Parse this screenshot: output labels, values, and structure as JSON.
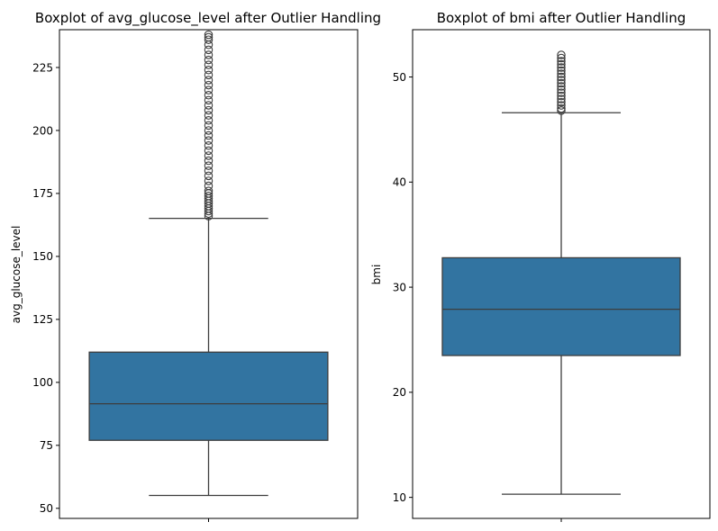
{
  "colors": {
    "box_fill": "#3274a1",
    "line": "#3d3d3d",
    "frame": "#000000",
    "background": "#ffffff"
  },
  "chart_data": [
    {
      "type": "boxplot",
      "title": "Boxplot of avg_glucose_level after Outlier Handling",
      "xlabel": "",
      "ylabel": "avg_glucose_level",
      "ylim": [
        46,
        240
      ],
      "yticks": [
        50,
        75,
        100,
        125,
        150,
        175,
        200,
        225
      ],
      "box": {
        "whisker_low": 55.1,
        "q1": 77.0,
        "median": 91.5,
        "q3": 112.0,
        "whisker_high": 165.1
      },
      "outliers": [
        166,
        167,
        168,
        169,
        170,
        171,
        172,
        173,
        174,
        175,
        176,
        178,
        180,
        182,
        184,
        186,
        188,
        190,
        192,
        194,
        196,
        198,
        200,
        202,
        204,
        206,
        208,
        210,
        212,
        214,
        216,
        218,
        220,
        222,
        224,
        226,
        228,
        230,
        232,
        234,
        236,
        237,
        238
      ]
    },
    {
      "type": "boxplot",
      "title": "Boxplot of bmi after Outlier Handling",
      "xlabel": "",
      "ylabel": "bmi",
      "ylim": [
        8,
        54.5
      ],
      "yticks": [
        10,
        20,
        30,
        40,
        50
      ],
      "box": {
        "whisker_low": 10.3,
        "q1": 23.5,
        "median": 27.9,
        "q3": 32.8,
        "whisker_high": 46.6
      },
      "outliers": [
        46.8,
        47.0,
        47.3,
        47.6,
        47.9,
        48.2,
        48.5,
        48.8,
        49.1,
        49.4,
        49.7,
        50.0,
        50.3,
        50.6,
        50.9,
        51.2,
        51.5,
        51.8,
        52.1
      ]
    }
  ]
}
